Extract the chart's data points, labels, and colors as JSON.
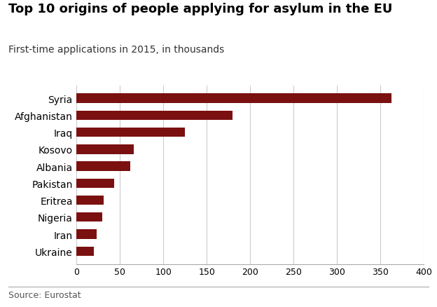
{
  "title": "Top 10 origins of people applying for asylum in the EU",
  "subtitle": "First-time applications in 2015, in thousands",
  "source": "Source: Eurostat",
  "categories": [
    "Syria",
    "Afghanistan",
    "Iraq",
    "Kosovo",
    "Albania",
    "Pakistan",
    "Eritrea",
    "Nigeria",
    "Iran",
    "Ukraine"
  ],
  "values": [
    363,
    180,
    125,
    66,
    62,
    43,
    31,
    30,
    23,
    20
  ],
  "bar_color": "#7B1010",
  "background_color": "#FFFFFF",
  "xlim": [
    0,
    400
  ],
  "xticks": [
    0,
    50,
    100,
    150,
    200,
    250,
    300,
    350,
    400
  ],
  "title_fontsize": 13,
  "subtitle_fontsize": 10,
  "source_fontsize": 9,
  "tick_fontsize": 9,
  "label_fontsize": 10
}
